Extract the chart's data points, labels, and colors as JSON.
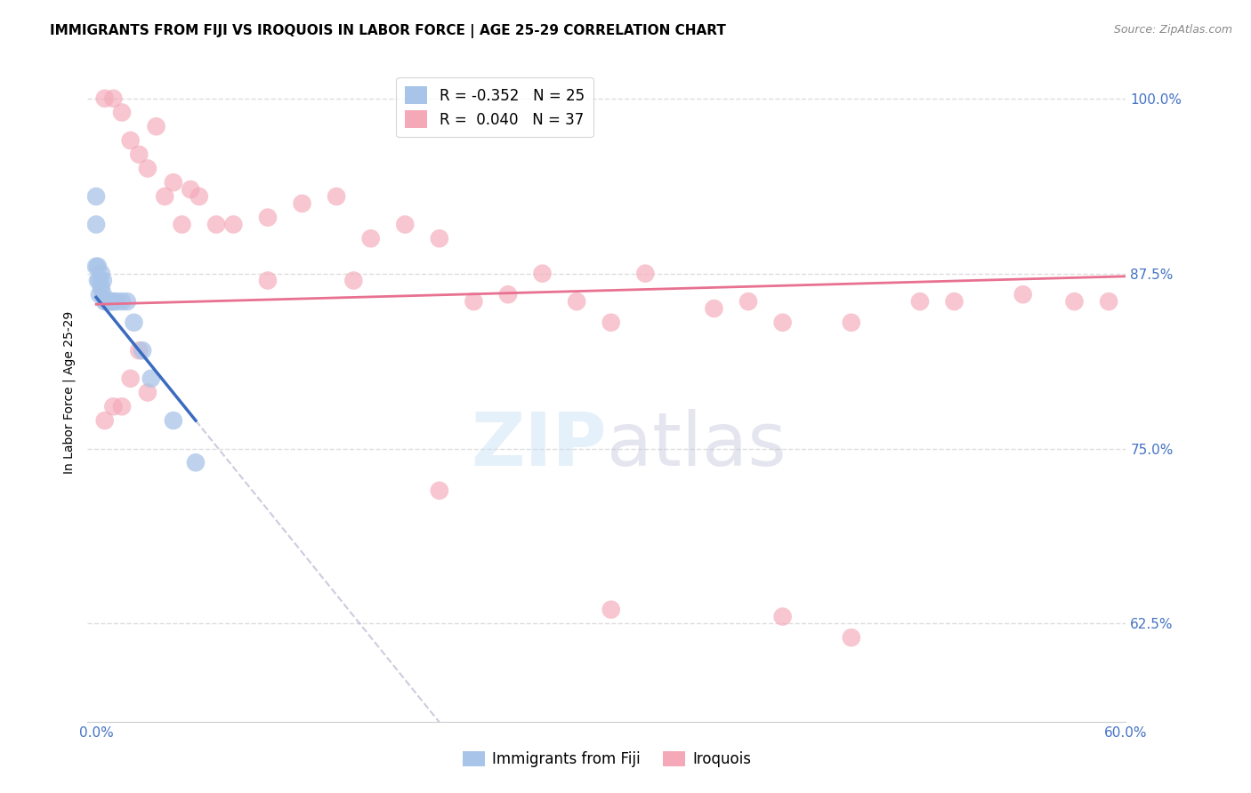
{
  "title": "IMMIGRANTS FROM FIJI VS IROQUOIS IN LABOR FORCE | AGE 25-29 CORRELATION CHART",
  "source": "Source: ZipAtlas.com",
  "xlabel": "",
  "ylabel": "In Labor Force | Age 25-29",
  "watermark": "ZIPatlas",
  "fiji_R": -0.352,
  "fiji_N": 25,
  "iroquois_R": 0.04,
  "iroquois_N": 37,
  "fiji_color": "#a8c4e8",
  "iroquois_color": "#f4a8b8",
  "fiji_line_color": "#3a6bbf",
  "iroquois_line_color": "#e87090",
  "x_min": 0.0,
  "x_max": 0.6,
  "y_min": 0.555,
  "y_max": 1.025,
  "y_ticks": [
    0.625,
    0.75,
    0.875,
    1.0
  ],
  "y_tick_labels": [
    "62.5%",
    "75.0%",
    "87.5%",
    "100.0%"
  ],
  "fiji_x": [
    0.0,
    0.0,
    0.0,
    0.001,
    0.001,
    0.002,
    0.002,
    0.003,
    0.003,
    0.004,
    0.004,
    0.005,
    0.006,
    0.007,
    0.008,
    0.009,
    0.01,
    0.012,
    0.015,
    0.018,
    0.022,
    0.027,
    0.032,
    0.045,
    0.058
  ],
  "fiji_y": [
    0.93,
    0.91,
    0.88,
    0.88,
    0.87,
    0.87,
    0.86,
    0.875,
    0.865,
    0.87,
    0.86,
    0.855,
    0.855,
    0.855,
    0.855,
    0.855,
    0.855,
    0.855,
    0.855,
    0.855,
    0.84,
    0.82,
    0.8,
    0.77,
    0.74
  ],
  "iroquois_x": [
    0.005,
    0.01,
    0.015,
    0.02,
    0.025,
    0.03,
    0.035,
    0.04,
    0.045,
    0.05,
    0.055,
    0.06,
    0.07,
    0.08,
    0.1,
    0.12,
    0.14,
    0.16,
    0.18,
    0.2,
    0.22,
    0.24,
    0.26,
    0.28,
    0.32,
    0.36,
    0.4,
    0.44,
    0.5,
    0.54,
    0.57,
    0.59,
    0.1,
    0.15,
    0.3,
    0.38,
    0.48
  ],
  "iroquois_y": [
    1.0,
    1.0,
    0.99,
    0.97,
    0.96,
    0.95,
    0.98,
    0.93,
    0.94,
    0.91,
    0.935,
    0.93,
    0.91,
    0.91,
    0.915,
    0.925,
    0.93,
    0.9,
    0.91,
    0.9,
    0.855,
    0.86,
    0.875,
    0.855,
    0.875,
    0.85,
    0.84,
    0.84,
    0.855,
    0.86,
    0.855,
    0.855,
    0.87,
    0.87,
    0.84,
    0.855,
    0.855
  ],
  "iroquois_outliers_x": [
    0.005,
    0.01,
    0.015,
    0.02,
    0.025,
    0.03,
    0.2,
    0.3,
    0.4,
    0.44
  ],
  "iroquois_outliers_y": [
    0.77,
    0.78,
    0.78,
    0.8,
    0.82,
    0.79,
    0.72,
    0.635,
    0.63,
    0.615
  ],
  "title_fontsize": 11,
  "label_fontsize": 10,
  "tick_fontsize": 11,
  "legend_fontsize": 12
}
